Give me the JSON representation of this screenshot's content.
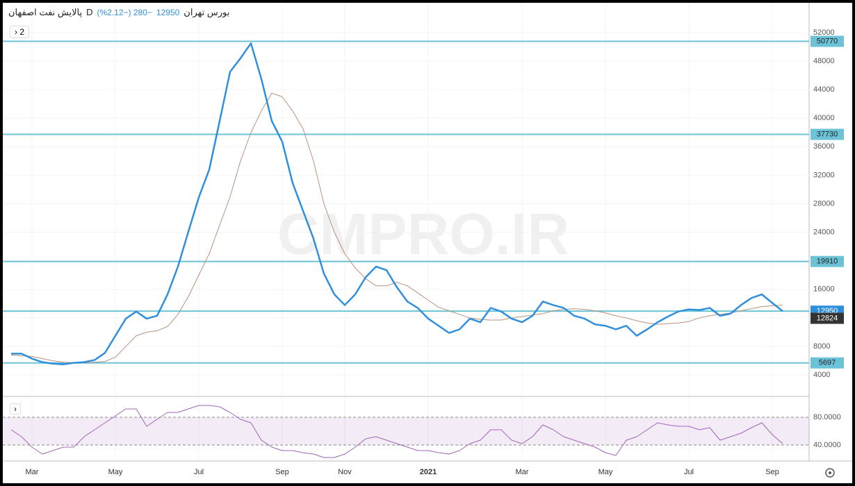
{
  "chart_data": [
    {
      "type": "line",
      "title": "پالایش نفت اصفهان",
      "interval": "D",
      "exchange": "بورس تهران",
      "last_price": 12950,
      "change": "−280 (−2.12%)",
      "indicator_count": 2,
      "watermark": "CMPRO.IR",
      "categories": [
        null,
        null,
        "Mar",
        null,
        null,
        null,
        null,
        null,
        null,
        null,
        "May",
        null,
        null,
        null,
        null,
        null,
        null,
        null,
        "Jul",
        null,
        null,
        null,
        null,
        null,
        null,
        null,
        "Sep",
        null,
        null,
        null,
        null,
        null,
        "Nov",
        null,
        null,
        null,
        null,
        null,
        null,
        null,
        "2021",
        null,
        null,
        null,
        null,
        null,
        null,
        null,
        null,
        "Mar",
        null,
        null,
        null,
        null,
        null,
        null,
        null,
        "May",
        null,
        null,
        null,
        null,
        null,
        null,
        null,
        "Jul",
        null,
        null,
        null,
        null,
        null,
        null,
        null,
        "Sep",
        null
      ],
      "series": [
        {
          "color": "#2f8fdc",
          "values": [
            7000,
            7000,
            6300,
            5800,
            5600,
            5500,
            5700,
            5800,
            6100,
            7100,
            9500,
            11900,
            12900,
            11900,
            12300,
            15300,
            19200,
            24100,
            28900,
            32800,
            39600,
            46500,
            48400,
            50500,
            45500,
            39600,
            36700,
            30900,
            27000,
            23100,
            18200,
            15300,
            13800,
            15300,
            17700,
            19200,
            18700,
            16300,
            14300,
            13400,
            11900,
            10900,
            9900,
            10400,
            11900,
            11400,
            13400,
            12900,
            11900,
            11400,
            12300,
            14300,
            13800,
            13400,
            12300,
            11900,
            11100,
            10900,
            10400,
            10900,
            9500,
            10400,
            11400,
            12200,
            12900,
            13200,
            13100,
            13400,
            12300,
            12600,
            13800,
            14800,
            15300,
            14100,
            12950
          ]
        },
        {
          "color": "#b8917a",
          "values": [
            6800,
            6700,
            6600,
            6300,
            6000,
            5800,
            5700,
            5700,
            5800,
            5900,
            6500,
            8000,
            9500,
            10000,
            10200,
            10800,
            12500,
            15000,
            18000,
            21000,
            25000,
            29000,
            34000,
            38000,
            41000,
            43500,
            43000,
            41000,
            38500,
            34000,
            28000,
            24000,
            21000,
            19000,
            17500,
            16500,
            16500,
            17000,
            16500,
            15500,
            14500,
            13500,
            13000,
            12500,
            12000,
            11800,
            11700,
            11700,
            12000,
            12200,
            12400,
            12600,
            13000,
            13200,
            13300,
            13200,
            13000,
            12700,
            12300,
            12000,
            11600,
            11300,
            11100,
            11200,
            11300,
            11500,
            12000,
            12300,
            12500,
            12700,
            13000,
            13300,
            13600,
            13700,
            13800
          ]
        }
      ],
      "level_lines": [
        50770,
        37730,
        19910,
        12950,
        5697
      ],
      "level_color": "#6cc3d8",
      "ma_last": 12824,
      "ylim": [
        900,
        55200
      ],
      "yticks": [
        4000,
        8000,
        12000,
        16000,
        20000,
        24000,
        28000,
        32000,
        36000,
        40000,
        44000,
        48000,
        52000
      ],
      "grid": true
    },
    {
      "type": "line",
      "series": [
        {
          "color": "#a065b8",
          "values": [
            62,
            52,
            37,
            27,
            32,
            37,
            37,
            52,
            62,
            72,
            82,
            92,
            92,
            67,
            77,
            87,
            87,
            92,
            97,
            97,
            95,
            87,
            77,
            72,
            47,
            37,
            32,
            32,
            29,
            27,
            22,
            22,
            27,
            37,
            49,
            52,
            47,
            42,
            37,
            32,
            32,
            29,
            27,
            32,
            42,
            47,
            62,
            62,
            47,
            42,
            52,
            69,
            62,
            52,
            47,
            42,
            37,
            29,
            25,
            47,
            52,
            62,
            72,
            69,
            67,
            67,
            62,
            65,
            47,
            52,
            57,
            65,
            72,
            55,
            42
          ]
        }
      ],
      "ylim": [
        17,
        102
      ],
      "yticks": [
        {
          "value": 80,
          "label": "80.0000"
        },
        {
          "value": 40,
          "label": "40.0000"
        }
      ]
    }
  ]
}
